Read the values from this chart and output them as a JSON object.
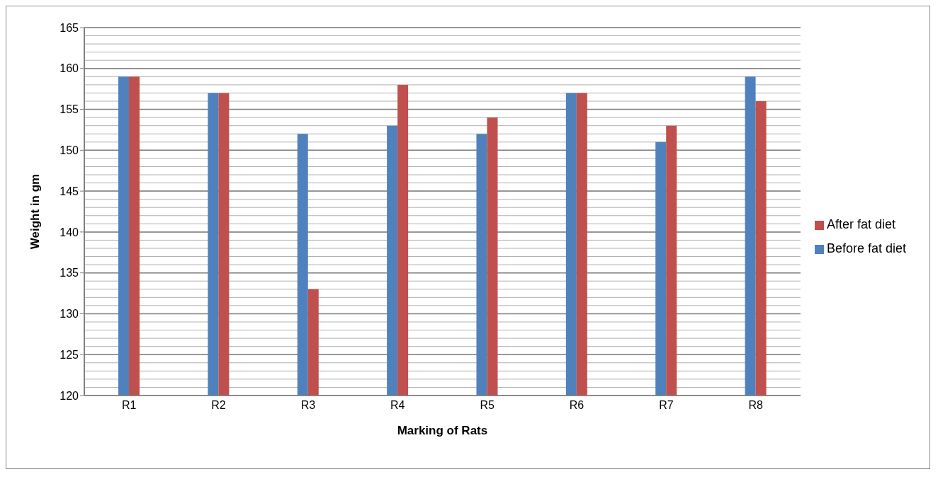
{
  "chart_data": {
    "type": "bar",
    "xlabel": "Marking of Rats",
    "ylabel": "Weight in gm",
    "categories": [
      "R1",
      "R2",
      "R3",
      "R4",
      "R5",
      "R6",
      "R7",
      "R8"
    ],
    "series": [
      {
        "name": "Before fat diet",
        "color": "#4f81bd",
        "values": [
          159,
          157,
          152,
          153,
          152,
          157,
          151,
          159
        ]
      },
      {
        "name": "After fat diet",
        "color": "#c0504d",
        "values": [
          159,
          157,
          133,
          158,
          154,
          157,
          153,
          156
        ]
      }
    ],
    "ylim": [
      120,
      165
    ],
    "yticks": [
      120,
      125,
      130,
      135,
      140,
      145,
      150,
      155,
      160,
      165
    ],
    "grid": "y",
    "legend": "right"
  }
}
